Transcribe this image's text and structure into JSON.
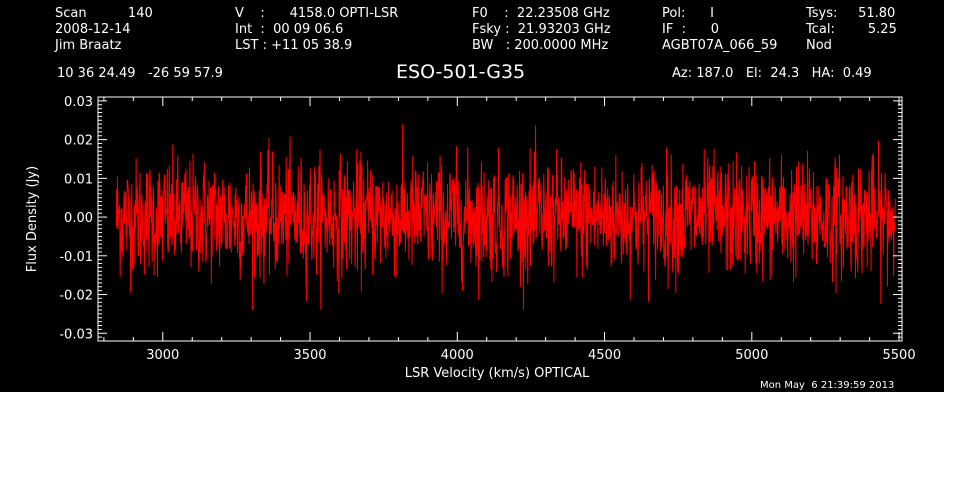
{
  "header": {
    "col1": [
      "Scan          140",
      "2008-12-14",
      "Jim Braatz"
    ],
    "col2": [
      "V    :      4158.0 OPTI-LSR",
      "Int  :  00 09 06.6",
      "LST : +11 05 38.9"
    ],
    "col3": [
      "F0    :  22.23508 GHz",
      "Fsky :  21.93203 GHz",
      "BW   : 200.0000 MHz"
    ],
    "col4": [
      "Pol:      I",
      "IF  :      0",
      "AGBT07A_066_59"
    ],
    "col5": [
      "Tsys:     51.80",
      "Tcal:        5.25",
      "Nod"
    ],
    "coords": "10 36 24.49   -26 59 57.9",
    "source": "ESO-501-G35",
    "azel": "Az: 187.0   El:  24.3   HA:  0.49",
    "timestamp": "Mon May  6 21:39:59 2013"
  },
  "colors": {
    "background": "#000000",
    "trace": "#ff0000",
    "axes": "#ffffff",
    "page": "#ffffff"
  },
  "chart_data": {
    "type": "line",
    "xlabel": "LSR Velocity (km/s) OPTICAL",
    "ylabel": "Flux Density (Jy)",
    "xlim": [
      2780,
      5510
    ],
    "ylim": [
      -0.032,
      0.031
    ],
    "x_ticks": [
      3000,
      3500,
      4000,
      4500,
      5000,
      5500
    ],
    "x_tick_labels": [
      "3000",
      "3500",
      "4000",
      "4500",
      "5000",
      "5500"
    ],
    "y_ticks": [
      -0.03,
      -0.02,
      -0.01,
      0.0,
      0.01,
      0.02,
      0.03
    ],
    "y_tick_labels": [
      "-0.03",
      "-0.02",
      "-0.01",
      "0.00",
      "0.01",
      "0.02",
      "0.03"
    ],
    "grid": false,
    "series": [
      {
        "x_range": [
          2842,
          5487
        ],
        "baseline": 0.0,
        "noise_rms": 0.0075,
        "peak_min": -0.024,
        "peak_max": 0.024,
        "n_points": 2000
      }
    ]
  }
}
